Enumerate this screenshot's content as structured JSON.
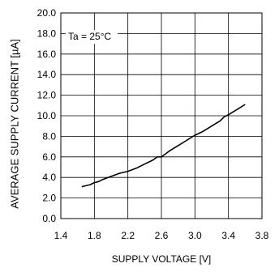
{
  "chart_data": {
    "type": "line",
    "annotation": "Ta = 25°C",
    "xlabel": "SUPPLY VOLTAGE [V]",
    "ylabel": "AVERAGE SUPPLY CURRENT [µA]",
    "xlim": [
      1.4,
      3.8
    ],
    "ylim": [
      0,
      20
    ],
    "xticks": [
      "1.4",
      "1.8",
      "2.2",
      "2.6",
      "3.0",
      "3.4",
      "3.8"
    ],
    "yticks": [
      "0.0",
      "2.0",
      "4.0",
      "6.0",
      "8.0",
      "10.0",
      "12.0",
      "14.0",
      "16.0",
      "18.0",
      "20.0"
    ],
    "grid": true,
    "series": [
      {
        "x": [
          1.65,
          1.7,
          1.75,
          1.8,
          1.85,
          1.9,
          2.0,
          2.1,
          2.2,
          2.3,
          2.4,
          2.5,
          2.55,
          2.6,
          2.65,
          2.7,
          2.8,
          2.9,
          3.0,
          3.1,
          3.2,
          3.3,
          3.35,
          3.4,
          3.5,
          3.6
        ],
        "y": [
          3.1,
          3.2,
          3.3,
          3.5,
          3.6,
          3.8,
          4.1,
          4.4,
          4.6,
          4.9,
          5.3,
          5.7,
          6.0,
          6.0,
          6.3,
          6.6,
          7.1,
          7.6,
          8.1,
          8.5,
          9.0,
          9.5,
          9.9,
          10.1,
          10.6,
          11.1
        ]
      }
    ],
    "line_color": "#000000"
  }
}
